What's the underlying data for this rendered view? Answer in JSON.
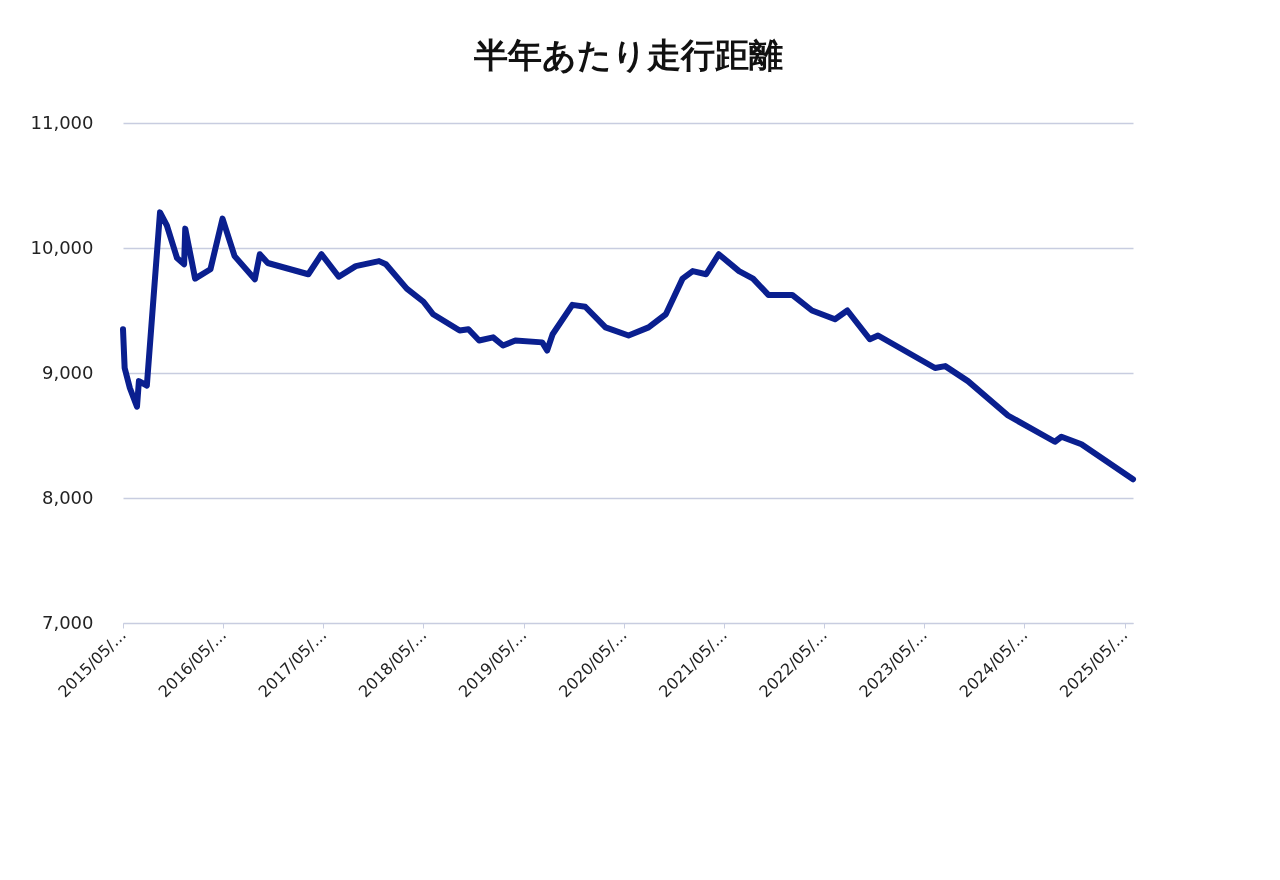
{
  "chart_data": {
    "type": "line",
    "title": "半年あたり走行距離",
    "x": [
      "2015-05-01",
      "2015-05-07",
      "2015-05-26",
      "2015-06-21",
      "2015-06-28",
      "2015-07-27",
      "2015-09-13",
      "2015-10-08",
      "2015-11-14",
      "2015-12-10",
      "2015-12-14",
      "2016-01-08",
      "2016-01-19",
      "2016-03-15",
      "2016-04-28",
      "2016-06-11",
      "2016-08-24",
      "2016-09-11",
      "2016-10-10",
      "2017-03-07",
      "2017-04-24",
      "2017-06-26",
      "2017-08-27",
      "2017-11-20",
      "2017-12-15",
      "2018-03-01",
      "2018-05-01",
      "2018-06-05",
      "2018-09-10",
      "2018-10-12",
      "2018-11-20",
      "2019-01-10",
      "2019-02-15",
      "2019-04-01",
      "2019-07-08",
      "2019-07-26",
      "2019-08-15",
      "2019-10-26",
      "2019-12-12",
      "2020-02-24",
      "2020-05-18",
      "2020-07-30",
      "2020-10-01",
      "2020-12-01",
      "2021-01-07",
      "2021-02-25",
      "2021-04-12",
      "2021-06-25",
      "2021-08-15",
      "2021-10-10",
      "2022-01-05",
      "2022-03-18",
      "2022-06-10",
      "2022-07-25",
      "2022-10-15",
      "2022-11-14",
      "2023-06-10",
      "2023-07-17",
      "2023-10-08",
      "2024-03-02",
      "2024-08-20",
      "2024-09-13",
      "2024-11-25",
      "2025-06-01"
    ],
    "series": [
      {
        "color": "#0a1f8f",
        "values": [
          9350,
          9040,
          8880,
          8730,
          8935,
          8900,
          10285,
          10180,
          9920,
          9870,
          10155,
          9880,
          9755,
          9830,
          10235,
          9935,
          9750,
          9950,
          9880,
          9790,
          9950,
          9770,
          9855,
          9895,
          9870,
          9675,
          9570,
          9470,
          9340,
          9350,
          9260,
          9285,
          9220,
          9260,
          9245,
          9180,
          9310,
          9545,
          9530,
          9365,
          9300,
          9365,
          9470,
          9755,
          9815,
          9790,
          9950,
          9815,
          9755,
          9625,
          9625,
          9500,
          9430,
          9500,
          9270,
          9300,
          9040,
          9055,
          8935,
          8660,
          8450,
          8490,
          8430,
          8150
        ]
      }
    ],
    "xlim": [
      "2015-05-01",
      "2025-06-01"
    ],
    "xticks": [
      {
        "value": "2015-05-01",
        "label": "2015/05/…"
      },
      {
        "value": "2016-05-01",
        "label": "2016/05/…"
      },
      {
        "value": "2017-05-01",
        "label": "2017/05/…"
      },
      {
        "value": "2018-05-01",
        "label": "2018/05/…"
      },
      {
        "value": "2019-05-01",
        "label": "2019/05/…"
      },
      {
        "value": "2020-05-01",
        "label": "2020/05/…"
      },
      {
        "value": "2021-05-01",
        "label": "2021/05/…"
      },
      {
        "value": "2022-05-01",
        "label": "2022/05/…"
      },
      {
        "value": "2023-05-01",
        "label": "2023/05/…"
      },
      {
        "value": "2024-05-01",
        "label": "2024/05/…"
      },
      {
        "value": "2025-05-01",
        "label": "2025/05/…"
      }
    ],
    "ylim": [
      7000,
      11000
    ],
    "yticks": [
      {
        "value": 7000,
        "label": "7,000"
      },
      {
        "value": 8000,
        "label": "8,000"
      },
      {
        "value": 9000,
        "label": "9,000"
      },
      {
        "value": 10000,
        "label": "10,000"
      },
      {
        "value": 11000,
        "label": "11,000"
      }
    ],
    "grid": "y",
    "legend": false,
    "marker": "none",
    "line_style": "solid"
  }
}
